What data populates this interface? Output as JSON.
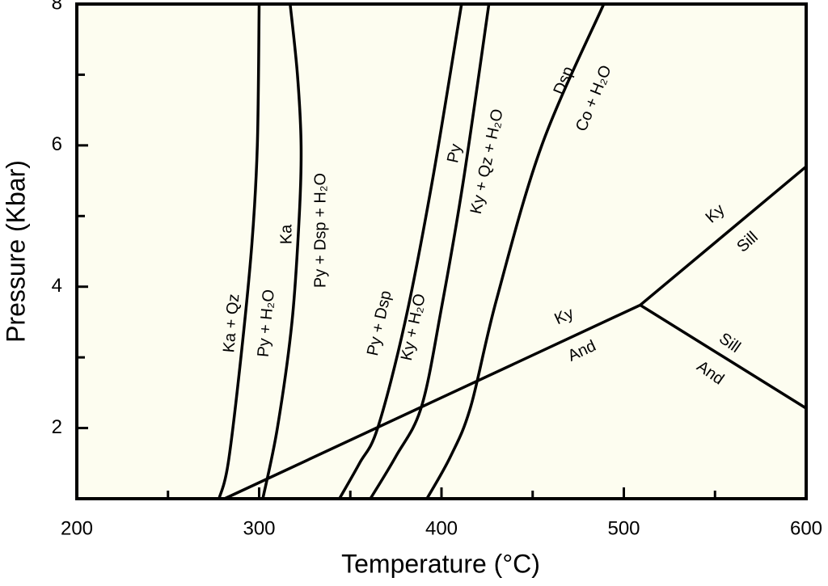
{
  "chart_data": {
    "type": "line",
    "xlabel": "Temperature (°C)",
    "ylabel": "Pressure (Kbar)",
    "xlim": [
      200,
      600
    ],
    "ylim": [
      1,
      8
    ],
    "xticks": [
      200,
      300,
      400,
      500,
      600
    ],
    "yticks": [
      2,
      4,
      6,
      8
    ],
    "xminorticks": [
      250,
      350,
      450,
      550
    ],
    "yminorticks": [
      3,
      5,
      7
    ],
    "color": "#000000",
    "background": "#fdfdf0",
    "series": [
      {
        "x": [
          278,
          283,
          290,
          296,
          299,
          300
        ],
        "values": [
          1,
          1.5,
          3,
          4.6,
          6,
          8
        ]
      },
      {
        "x": [
          302,
          310,
          318,
          322,
          323,
          321,
          317
        ],
        "values": [
          1,
          2,
          3.5,
          5,
          6,
          7,
          8
        ]
      },
      {
        "x": [
          344,
          355,
          365,
          380,
          395,
          411
        ],
        "values": [
          1,
          1.5,
          2,
          3.5,
          5.5,
          8
        ]
      },
      {
        "x": [
          361,
          375,
          389,
          400,
          412,
          426
        ],
        "values": [
          1,
          1.6,
          2.3,
          3.7,
          5.5,
          8
        ]
      },
      {
        "x": [
          392,
          405,
          416,
          430,
          455,
          489
        ],
        "values": [
          1,
          1.6,
          2.3,
          3.8,
          6,
          8
        ]
      },
      {
        "x": [
          281,
          509
        ],
        "values": [
          1,
          3.74
        ]
      },
      {
        "x": [
          509,
          600
        ],
        "values": [
          3.74,
          5.7
        ]
      },
      {
        "x": [
          509,
          600
        ],
        "values": [
          3.74,
          2.28
        ]
      }
    ],
    "annotations": [
      "Ka + Qz",
      "Py + H₂O",
      "Ka",
      "Py + Dsp + H₂O",
      "Py + Dsp",
      "Ky + H₂O",
      "Py",
      "Ky + Qz + H₂O",
      "Dsp",
      "Co + H₂O",
      "Ky",
      "And",
      "Ky",
      "Sill",
      "Sill",
      "And"
    ]
  }
}
